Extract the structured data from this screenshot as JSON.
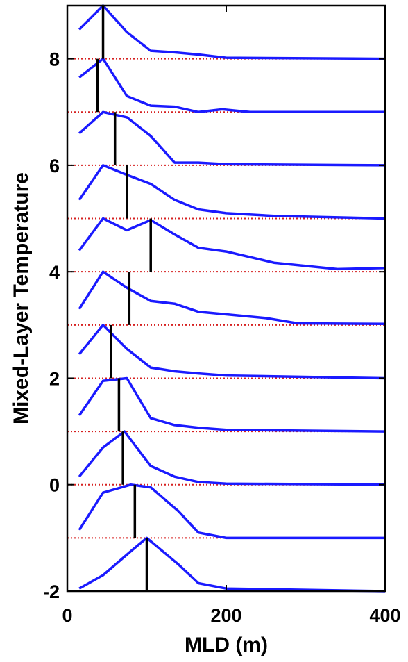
{
  "chart_data": {
    "type": "line",
    "xlabel": "MLD (m)",
    "ylabel": "Mixed-Layer Temperature",
    "xlim": [
      0,
      400
    ],
    "ylim": [
      -2,
      9
    ],
    "xticks": [
      0,
      200,
      400
    ],
    "yticks": [
      -2,
      0,
      2,
      4,
      6,
      8
    ],
    "grid": false,
    "colors": {
      "curve": "#1a1aff",
      "baseline": "#d62020",
      "marker": "#000000"
    },
    "series": [
      {
        "baseline": -2,
        "marker_x": 100,
        "marker_range": [
          -2,
          -1
        ],
        "x": [
          15,
          45,
          80,
          100,
          140,
          165,
          200,
          400
        ],
        "y": [
          -1.95,
          -1.7,
          -1.25,
          -1.0,
          -1.5,
          -1.85,
          -1.95,
          -2.0
        ]
      },
      {
        "baseline": -1,
        "marker_x": 85,
        "marker_range": [
          -1,
          0
        ],
        "x": [
          15,
          45,
          80,
          105,
          140,
          165,
          200,
          400
        ],
        "y": [
          -0.85,
          -0.15,
          0.0,
          -0.05,
          -0.5,
          -0.9,
          -1.0,
          -1.0
        ]
      },
      {
        "baseline": 0,
        "marker_x": 70,
        "marker_range": [
          0,
          1
        ],
        "x": [
          15,
          45,
          72,
          105,
          135,
          165,
          200,
          400
        ],
        "y": [
          0.15,
          0.7,
          1.0,
          0.35,
          0.15,
          0.05,
          0.02,
          0.0
        ]
      },
      {
        "baseline": 1,
        "marker_x": 65,
        "marker_range": [
          1,
          2
        ],
        "x": [
          15,
          45,
          75,
          105,
          135,
          165,
          200,
          400
        ],
        "y": [
          1.3,
          1.95,
          2.0,
          1.25,
          1.12,
          1.07,
          1.03,
          1.0
        ]
      },
      {
        "baseline": 2,
        "marker_x": 55,
        "marker_range": [
          2,
          3
        ],
        "x": [
          15,
          45,
          75,
          105,
          135,
          165,
          200,
          400
        ],
        "y": [
          2.45,
          3.0,
          2.55,
          2.2,
          2.13,
          2.09,
          2.05,
          2.0
        ]
      },
      {
        "baseline": 3,
        "marker_x": 78,
        "marker_range": [
          3,
          4
        ],
        "x": [
          15,
          45,
          75,
          105,
          135,
          165,
          200,
          250,
          290,
          400
        ],
        "y": [
          3.3,
          4.0,
          3.7,
          3.45,
          3.4,
          3.25,
          3.2,
          3.13,
          3.03,
          3.02
        ]
      },
      {
        "baseline": 4,
        "marker_x": 105,
        "marker_range": [
          4,
          5
        ],
        "x": [
          15,
          45,
          75,
          105,
          135,
          165,
          200,
          260,
          340,
          400
        ],
        "y": [
          4.4,
          5.0,
          4.78,
          4.97,
          4.7,
          4.45,
          4.38,
          4.17,
          4.05,
          4.07
        ]
      },
      {
        "baseline": 5,
        "marker_x": 75,
        "marker_range": [
          5,
          6
        ],
        "x": [
          15,
          45,
          75,
          105,
          135,
          165,
          200,
          260,
          400
        ],
        "y": [
          5.35,
          6.0,
          5.82,
          5.65,
          5.35,
          5.17,
          5.1,
          5.05,
          5.0
        ]
      },
      {
        "baseline": 6,
        "marker_x": 60,
        "marker_range": [
          6,
          7
        ],
        "x": [
          15,
          45,
          75,
          105,
          135,
          165,
          200,
          400
        ],
        "y": [
          6.6,
          7.0,
          6.9,
          6.55,
          6.05,
          6.05,
          6.02,
          6.0
        ]
      },
      {
        "baseline": 7,
        "marker_x": 38,
        "marker_range": [
          7,
          8
        ],
        "x": [
          15,
          45,
          75,
          105,
          135,
          165,
          195,
          230,
          400
        ],
        "y": [
          7.65,
          8.0,
          7.3,
          7.12,
          7.1,
          7.0,
          7.05,
          7.0,
          7.0
        ]
      },
      {
        "baseline": 8,
        "marker_x": 45,
        "marker_range": [
          8,
          9
        ],
        "x": [
          15,
          45,
          75,
          105,
          135,
          165,
          200,
          400
        ],
        "y": [
          8.55,
          9.0,
          8.5,
          8.15,
          8.12,
          8.08,
          8.02,
          8.0
        ]
      }
    ]
  }
}
